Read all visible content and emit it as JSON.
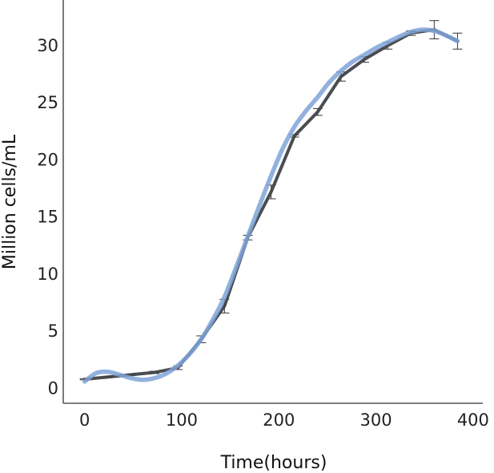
{
  "chart_data": {
    "type": "line",
    "xlabel": "Time(hours)",
    "ylabel": "Million cells/mL",
    "xlim": [
      -22,
      410
    ],
    "ylim": [
      -1.3,
      34
    ],
    "x_ticks": [
      0,
      100,
      200,
      300,
      400
    ],
    "y_ticks": [
      0,
      5,
      10,
      15,
      20,
      25,
      30
    ],
    "grid": false,
    "series": [
      {
        "color": "#4a4d52",
        "style": "solid",
        "x": [
          0,
          24,
          48,
          72,
          96,
          120,
          144,
          168,
          192,
          216,
          240,
          264,
          288,
          312,
          336,
          360,
          384
        ],
        "y": [
          0.8,
          1.0,
          1.2,
          1.4,
          1.8,
          4.3,
          7.2,
          13.2,
          17.2,
          22.1,
          24.2,
          27.3,
          28.8,
          30.0,
          31.1,
          31.4,
          30.4
        ],
        "error": [
          0.05,
          0.05,
          0.05,
          0.1,
          0.15,
          0.3,
          0.6,
          0.2,
          0.6,
          0.1,
          0.3,
          0.4,
          0.25,
          0.3,
          0.2,
          0.8,
          0.7
        ]
      },
      {
        "color": "#7fa3d8",
        "style": "smoothed fit",
        "x": [
          0,
          12,
          24,
          36,
          48,
          60,
          72,
          84,
          96,
          108,
          120,
          132,
          144,
          156,
          168,
          180,
          192,
          204,
          216,
          228,
          240,
          252,
          264,
          276,
          288,
          300,
          312,
          324,
          336,
          348,
          360,
          372,
          384
        ],
        "y": [
          0.6,
          1.35,
          1.45,
          1.2,
          0.9,
          0.75,
          0.9,
          1.3,
          2.0,
          3.0,
          4.3,
          6.0,
          8.0,
          10.6,
          13.3,
          16.0,
          18.6,
          21.0,
          22.9,
          24.3,
          25.5,
          26.8,
          27.8,
          28.6,
          29.2,
          29.8,
          30.3,
          30.8,
          31.2,
          31.4,
          31.3,
          30.9,
          30.4
        ]
      }
    ]
  }
}
